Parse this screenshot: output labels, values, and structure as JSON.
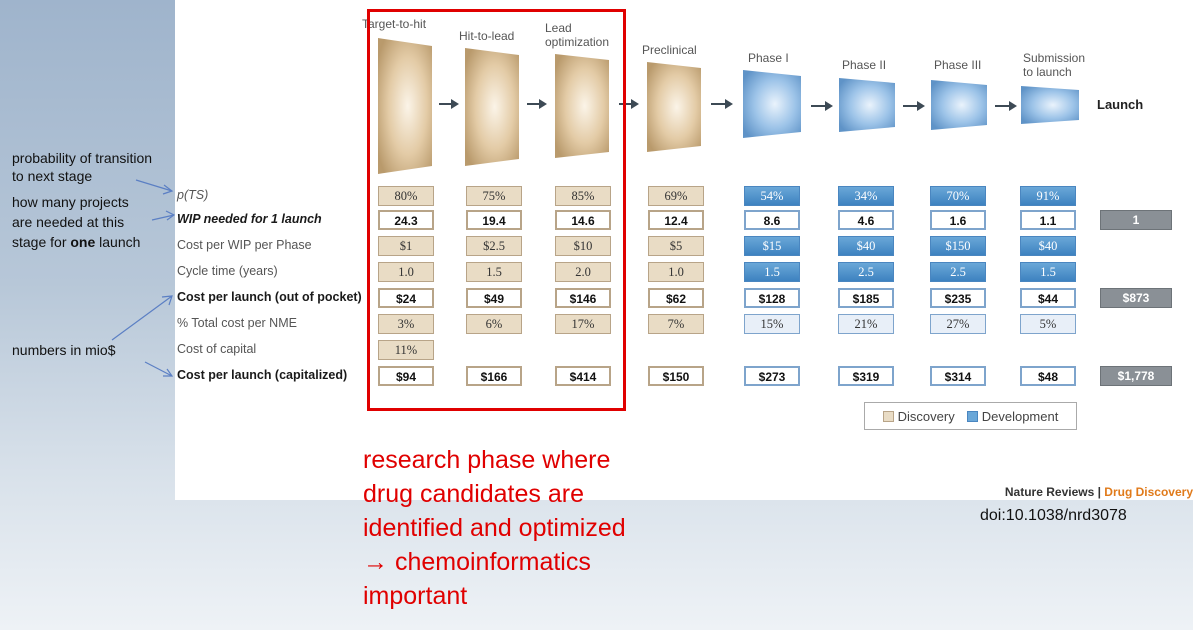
{
  "stages": [
    {
      "name": "Target-to-hit",
      "category": "Discovery"
    },
    {
      "name": "Hit-to-lead",
      "category": "Discovery"
    },
    {
      "name": "Lead optimization",
      "category": "Discovery"
    },
    {
      "name": "Preclinical",
      "category": "Discovery"
    },
    {
      "name": "Phase I",
      "category": "Development"
    },
    {
      "name": "Phase II",
      "category": "Development"
    },
    {
      "name": "Phase III",
      "category": "Development"
    },
    {
      "name": "Submission to launch",
      "category": "Development"
    }
  ],
  "stage_labels": {
    "s0": "Target-to-hit",
    "s1": "Hit-to-lead",
    "s2a": "Lead",
    "s2b": "optimization",
    "s3": "Preclinical",
    "s4": "Phase I",
    "s5": "Phase II",
    "s6": "Phase III",
    "s7a": "Submission",
    "s7b": "to launch",
    "launch": "Launch"
  },
  "rows": {
    "pts": {
      "label": "p(TS)",
      "values": [
        "80%",
        "75%",
        "85%",
        "69%",
        "54%",
        "34%",
        "70%",
        "91%"
      ],
      "total": ""
    },
    "wip": {
      "label": "WIP needed for 1 launch",
      "values": [
        "24.3",
        "19.4",
        "14.6",
        "12.4",
        "8.6",
        "4.6",
        "1.6",
        "1.1"
      ],
      "total": "1"
    },
    "cost_wip": {
      "label": "Cost per WIP per Phase",
      "values": [
        "$1",
        "$2.5",
        "$10",
        "$5",
        "$15",
        "$40",
        "$150",
        "$40"
      ],
      "total": ""
    },
    "cycle": {
      "label": "Cycle time (years)",
      "values": [
        "1.0",
        "1.5",
        "2.0",
        "1.0",
        "1.5",
        "2.5",
        "2.5",
        "1.5"
      ],
      "total": ""
    },
    "cost_launch": {
      "label": "Cost per launch (out of pocket)",
      "values": [
        "$24",
        "$49",
        "$146",
        "$62",
        "$128",
        "$185",
        "$235",
        "$44"
      ],
      "total": "$873"
    },
    "pct_total": {
      "label": "% Total cost per NME",
      "values": [
        "3%",
        "6%",
        "17%",
        "7%",
        "15%",
        "21%",
        "27%",
        "5%"
      ],
      "total": ""
    },
    "cost_capital": {
      "label": "Cost of capital",
      "values": [
        "11%"
      ],
      "total": ""
    },
    "cost_cap": {
      "label": "Cost per launch (capitalized)",
      "values": [
        "$94",
        "$166",
        "$414",
        "$150",
        "$273",
        "$319",
        "$314",
        "$48"
      ],
      "total": "$1,778"
    }
  },
  "legend": {
    "discovery": "Discovery",
    "development": "Development"
  },
  "credit": {
    "journal": "Nature Reviews",
    "separator": " | ",
    "section": "Drug Discovery"
  },
  "doi": "doi:10.1038/nrd3078",
  "annotations": {
    "transition_1": "probability of transition",
    "transition_2": "to next stage",
    "projects_1": "how many projects",
    "projects_2": "are needed at this",
    "projects_3a": "stage for ",
    "projects_3b": "one",
    "projects_3c": " launch",
    "mio": "numbers in mio$"
  },
  "research_note": [
    "research phase where",
    "drug candidates are",
    "identified and optimized",
    "→ chemoinformatics",
    "important"
  ],
  "colors": {
    "discovery": "#d9c3a0",
    "development": "#6aa7d8",
    "highlight": "#e00000",
    "total": "#8a9096"
  }
}
